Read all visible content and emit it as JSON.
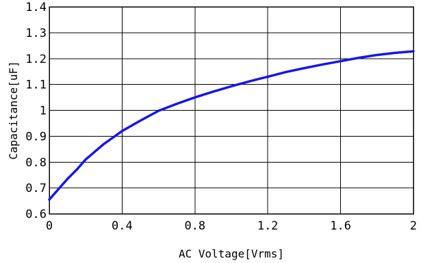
{
  "chart_data": {
    "type": "line",
    "title": "",
    "xlabel": "AC Voltage[Vrms]",
    "ylabel": "Capacitance[uF]",
    "xlim": [
      0,
      2
    ],
    "ylim": [
      0.6,
      1.4
    ],
    "grid": true,
    "x_ticks": [
      0,
      0.4,
      0.8,
      1.2,
      1.6,
      2
    ],
    "x_tick_labels": [
      "0",
      "0.4",
      "0.8",
      "1.2",
      "1.6",
      "2"
    ],
    "y_ticks": [
      0.6,
      0.7,
      0.8,
      0.9,
      1,
      1.1,
      1.2,
      1.3,
      1.4
    ],
    "y_tick_labels": [
      "0.6",
      "0.7",
      "0.8",
      "0.9",
      "1",
      "1.1",
      "1.2",
      "1.3",
      "1.4"
    ],
    "series": [
      {
        "color": "#1515ee",
        "x": [
          0,
          0.05,
          0.1,
          0.15,
          0.2,
          0.25,
          0.3,
          0.35,
          0.4,
          0.5,
          0.6,
          0.7,
          0.8,
          0.9,
          1.0,
          1.1,
          1.2,
          1.3,
          1.4,
          1.5,
          1.6,
          1.7,
          1.8,
          1.9,
          2.0
        ],
        "y": [
          0.655,
          0.695,
          0.735,
          0.77,
          0.81,
          0.84,
          0.87,
          0.895,
          0.92,
          0.96,
          0.998,
          1.025,
          1.05,
          1.072,
          1.093,
          1.112,
          1.13,
          1.148,
          1.163,
          1.177,
          1.19,
          1.203,
          1.214,
          1.222,
          1.228
        ]
      }
    ]
  }
}
